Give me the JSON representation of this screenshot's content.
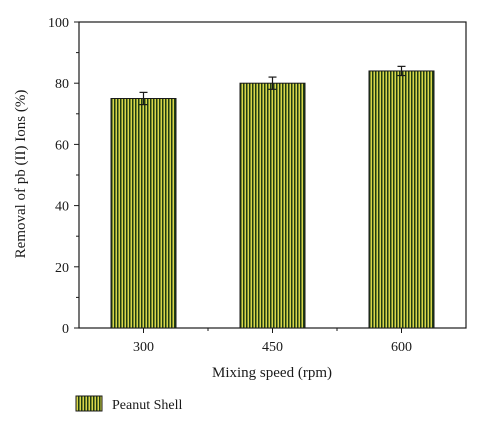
{
  "chart_data": {
    "type": "bar",
    "categories": [
      "300",
      "450",
      "600"
    ],
    "series": [
      {
        "name": "Peanut Shell",
        "values": [
          75,
          80,
          84
        ],
        "errors": [
          2,
          2,
          1.5
        ]
      }
    ],
    "xlabel": "Mixing speed (rpm)",
    "ylabel": "Removal of pb (II) Ions (%)",
    "ylim": [
      0,
      100
    ],
    "yticks": [
      "0",
      "20",
      "40",
      "60",
      "80",
      "100"
    ],
    "grid": false,
    "legend_position": "bottom-left",
    "colors": {
      "bar_stripe_dark": "#1f3d12",
      "bar_stripe_light": "#d8d64a",
      "axis": "#1a1a1a"
    }
  }
}
